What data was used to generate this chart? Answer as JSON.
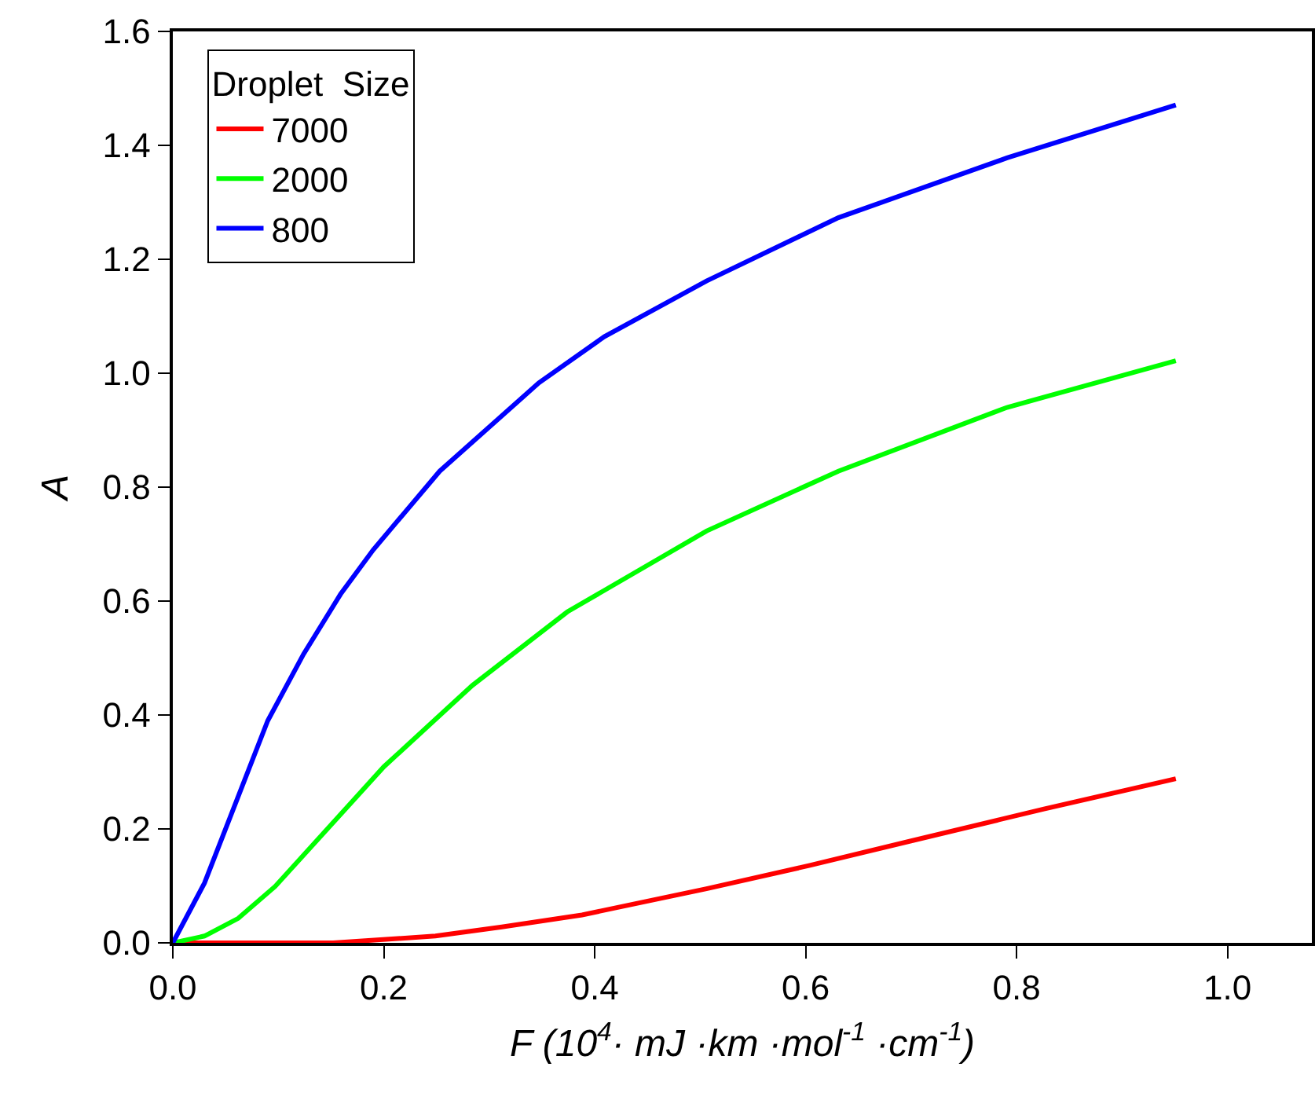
{
  "chart_data": {
    "type": "line",
    "xlabel": "F (10$^{4}$· mJ ·km ·mol$^{-1}$ ·cm$^{-1}$)",
    "ylabel": "A",
    "legend_title": "Droplet  Size",
    "legend": "top left",
    "marker": "none",
    "line_style": "solid",
    "xlim": [
      0,
      1.08
    ],
    "xticks": [
      {
        "value": 0,
        "label": "0.0"
      },
      0.2,
      0.4,
      0.6,
      0.8,
      {
        "value": 1,
        "label": "1.0"
      }
    ],
    "ylim": [
      0,
      1.6
    ],
    "yticks": [
      {
        "value": 0,
        "label": "0.0"
      },
      0.2,
      0.4,
      0.6,
      0.8,
      {
        "value": 1,
        "label": "1.0"
      },
      1.2,
      1.4,
      1.6
    ],
    "series": [
      {
        "name": "7000",
        "color": "#ff0000",
        "x": [
          0,
          0.152,
          0.249,
          0.312,
          0.388,
          0.506,
          0.604,
          0.7,
          0.826,
          0.951
        ],
        "values": [
          0,
          0.0,
          0.012,
          0.028,
          0.049,
          0.095,
          0.136,
          0.179,
          0.235,
          0.288
        ]
      },
      {
        "name": "2000",
        "color": "#00ff00",
        "x": [
          0,
          0.03,
          0.062,
          0.097,
          0.2,
          0.284,
          0.374,
          0.506,
          0.631,
          0.791,
          0.951
        ],
        "values": [
          0,
          0.012,
          0.043,
          0.099,
          0.309,
          0.452,
          0.581,
          0.723,
          0.828,
          0.94,
          1.022
        ]
      },
      {
        "name": "800",
        "color": "#0000ff",
        "x": [
          0,
          0.03,
          0.09,
          0.124,
          0.159,
          0.19,
          0.253,
          0.347,
          0.409,
          0.506,
          0.631,
          0.791,
          0.951
        ],
        "values": [
          0,
          0.105,
          0.39,
          0.507,
          0.612,
          0.69,
          0.828,
          0.983,
          1.064,
          1.162,
          1.273,
          1.378,
          1.471
        ]
      }
    ]
  }
}
